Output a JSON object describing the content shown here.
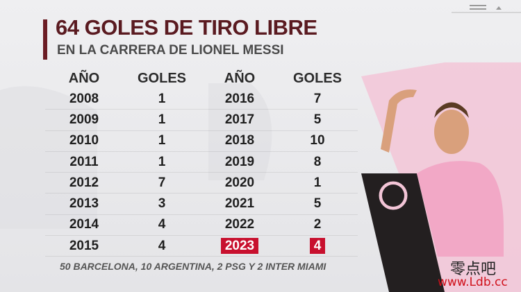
{
  "header": {
    "title": "64 GOLES DE TIRO LIBRE",
    "subtitle": "EN LA CARRERA DE LIONEL MESSI"
  },
  "table": {
    "columns": [
      "AÑO",
      "GOLES",
      "AÑO",
      "GOLES"
    ],
    "rows": [
      [
        "2008",
        "1",
        "2016",
        "7"
      ],
      [
        "2009",
        "1",
        "2017",
        "5"
      ],
      [
        "2010",
        "1",
        "2018",
        "10"
      ],
      [
        "2011",
        "1",
        "2019",
        "8"
      ],
      [
        "2012",
        "7",
        "2020",
        "1"
      ],
      [
        "2013",
        "3",
        "2021",
        "5"
      ],
      [
        "2014",
        "4",
        "2022",
        "2"
      ],
      [
        "2015",
        "4",
        "2023",
        "4"
      ]
    ]
  },
  "footer": "50 BARCELONA, 10 ARGENTINA, 2 PSG Y 2 INTER MIAMI",
  "watermark": {
    "name": "零点吧",
    "url": "www.Ldb.cc"
  }
}
